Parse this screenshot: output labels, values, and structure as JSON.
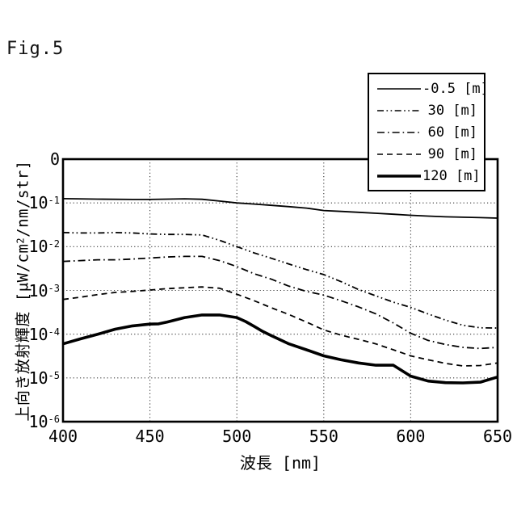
{
  "figure": {
    "title": "Fig.5"
  },
  "chart_data": {
    "type": "line",
    "title": "",
    "xlabel": "波長 [nm]",
    "ylabel": "上向き放射輝度 [μW/cm²/nm/str]",
    "x_ticks": [
      400,
      450,
      500,
      550,
      600,
      650
    ],
    "xlim": [
      400,
      650
    ],
    "y_scale": "log",
    "ylim": [
      1e-06,
      1
    ],
    "y_ticks": [
      {
        "label": "0"
      },
      {
        "base": "10",
        "exp": "-1"
      },
      {
        "base": "10",
        "exp": "-2"
      },
      {
        "base": "10",
        "exp": "-3"
      },
      {
        "base": "10",
        "exp": "-4"
      },
      {
        "base": "10",
        "exp": "-5"
      },
      {
        "base": "10",
        "exp": "-6"
      }
    ],
    "grid": "dotted",
    "legend_position": "upper right outside-overlap",
    "line_color": "#000000",
    "series": [
      {
        "name": "-0.5 [m]",
        "style": "solid",
        "thickness": "thin",
        "x": [
          400,
          420,
          440,
          450,
          460,
          470,
          480,
          490,
          500,
          510,
          520,
          530,
          540,
          550,
          560,
          570,
          580,
          590,
          600,
          610,
          620,
          630,
          640,
          650
        ],
        "y": [
          0.125,
          0.122,
          0.12,
          0.12,
          0.122,
          0.124,
          0.121,
          0.11,
          0.1,
          0.094,
          0.088,
          0.082,
          0.076,
          0.067,
          0.064,
          0.061,
          0.058,
          0.055,
          0.052,
          0.05,
          0.048,
          0.047,
          0.046,
          0.045
        ]
      },
      {
        "name": "30 [m]",
        "style": "dashdotdot",
        "thickness": "thin",
        "x": [
          400,
          410,
          420,
          430,
          440,
          450,
          460,
          470,
          480,
          490,
          500,
          510,
          520,
          530,
          540,
          550,
          560,
          570,
          580,
          590,
          600,
          610,
          620,
          630,
          640,
          650
        ],
        "y": [
          0.021,
          0.0205,
          0.0205,
          0.021,
          0.0205,
          0.0195,
          0.019,
          0.019,
          0.0185,
          0.014,
          0.01,
          0.0072,
          0.0054,
          0.004,
          0.003,
          0.0023,
          0.00158,
          0.00105,
          0.00075,
          0.00054,
          0.00041,
          0.00029,
          0.00021,
          0.00016,
          0.00014,
          0.000138
        ]
      },
      {
        "name": "60 [m]",
        "style": "dashdot",
        "thickness": "thin",
        "x": [
          400,
          410,
          420,
          430,
          440,
          450,
          460,
          470,
          480,
          490,
          500,
          510,
          520,
          530,
          540,
          550,
          560,
          570,
          580,
          590,
          600,
          610,
          620,
          630,
          640,
          650
        ],
        "y": [
          0.0046,
          0.0048,
          0.005,
          0.005,
          0.0052,
          0.0055,
          0.0058,
          0.006,
          0.006,
          0.0048,
          0.0035,
          0.0024,
          0.0018,
          0.00125,
          0.00095,
          0.00078,
          0.00058,
          0.00042,
          0.00029,
          0.00018,
          0.000105,
          7.2e-05,
          5.8e-05,
          5e-05,
          4.7e-05,
          5e-05
        ]
      },
      {
        "name": "90 [m]",
        "style": "dashed",
        "thickness": "thin",
        "x": [
          400,
          410,
          420,
          430,
          440,
          450,
          460,
          470,
          480,
          490,
          500,
          510,
          520,
          530,
          540,
          550,
          560,
          570,
          580,
          590,
          600,
          610,
          620,
          630,
          640,
          650
        ],
        "y": [
          0.00062,
          0.0007,
          0.0008,
          0.0009,
          0.00095,
          0.00102,
          0.0011,
          0.00115,
          0.0012,
          0.00112,
          0.00082,
          0.00058,
          0.0004,
          0.00028,
          0.00019,
          0.000125,
          9.5e-05,
          7.6e-05,
          6e-05,
          4.4e-05,
          3.2e-05,
          2.6e-05,
          2.15e-05,
          1.88e-05,
          1.92e-05,
          2.2e-05
        ]
      },
      {
        "name": "120 [m]",
        "style": "solid",
        "thickness": "thick",
        "x": [
          400,
          410,
          420,
          430,
          440,
          450,
          455,
          460,
          470,
          480,
          490,
          500,
          505,
          510,
          515,
          520,
          530,
          540,
          550,
          560,
          570,
          580,
          590,
          600,
          610,
          620,
          630,
          640,
          650
        ],
        "y": [
          6e-05,
          7.8e-05,
          0.0001,
          0.00013,
          0.000155,
          0.00017,
          0.000172,
          0.00019,
          0.00024,
          0.000275,
          0.000275,
          0.00024,
          0.000195,
          0.00015,
          0.000115,
          9.2e-05,
          6e-05,
          4.4e-05,
          3.2e-05,
          2.6e-05,
          2.2e-05,
          1.95e-05,
          1.95e-05,
          1.1e-05,
          8.5e-06,
          7.8e-06,
          7.7e-06,
          8e-06,
          1.05e-05
        ]
      }
    ]
  }
}
